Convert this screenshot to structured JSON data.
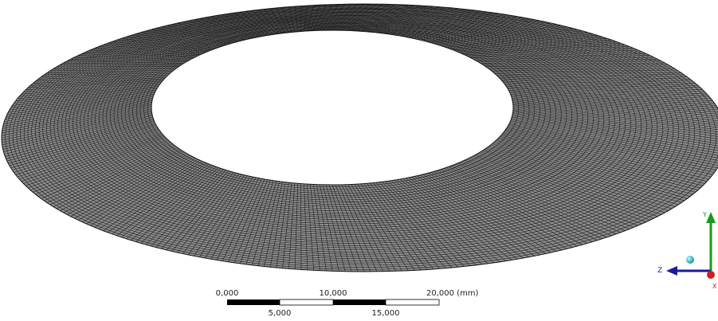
{
  "scale_bar": {
    "top_labels": [
      "0,000",
      "10,000",
      "20,000 (mm)"
    ],
    "bottom_labels": [
      "5,000",
      "15,000"
    ]
  },
  "triad": {
    "y_label": "Y",
    "z_label": "Z",
    "x_label": "X"
  }
}
